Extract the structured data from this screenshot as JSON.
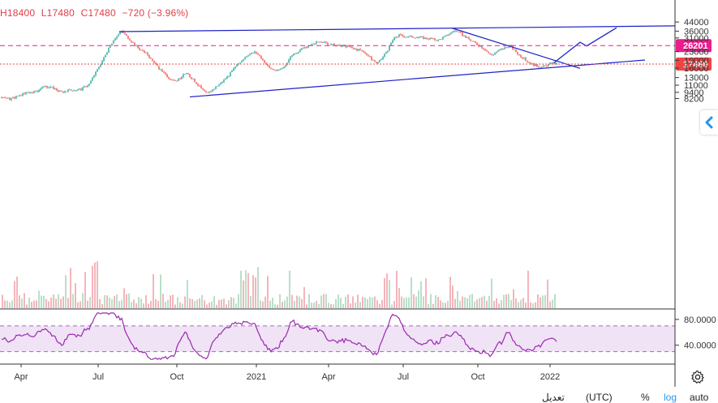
{
  "header": {
    "high": "H18400",
    "low": "L17480",
    "close": "C17480",
    "change": "−720 (−3.96%)"
  },
  "chart_data": {
    "type": "candlestick",
    "price_axis": {
      "scale": "log",
      "ticks": [
        44000,
        36000,
        31000,
        23000,
        19000,
        16000,
        13000,
        11000,
        9400,
        8200
      ]
    },
    "price_ticks_text": [
      "44000",
      "36000",
      "31000",
      "23000",
      "19000",
      "16000",
      "13000",
      "11000",
      "9400",
      "8200"
    ],
    "price_labels": [
      {
        "value": 26201,
        "text": "26201",
        "color": "#e91e8c"
      },
      {
        "value": 17480,
        "text": "17480",
        "color": "#ef4444"
      }
    ],
    "time_labels": [
      "Apr",
      "Jul",
      "Oct",
      "2021",
      "Apr",
      "Jul",
      "Oct",
      "2022"
    ],
    "rsi": {
      "ticks": [
        "80.0000",
        "40.0000"
      ],
      "upper_band": 70,
      "lower_band": 30,
      "color": "#9c27b0"
    },
    "price_path": [
      [
        0,
        8500
      ],
      [
        12,
        8050
      ],
      [
        25,
        8900
      ],
      [
        35,
        9300
      ],
      [
        45,
        9600
      ],
      [
        55,
        10600
      ],
      [
        65,
        10400
      ],
      [
        75,
        9400
      ],
      [
        85,
        9800
      ],
      [
        100,
        10100
      ],
      [
        110,
        11300
      ],
      [
        120,
        15500
      ],
      [
        128,
        20000
      ],
      [
        140,
        30000
      ],
      [
        150,
        36000
      ],
      [
        158,
        31000
      ],
      [
        170,
        25000
      ],
      [
        180,
        22000
      ],
      [
        195,
        16000
      ],
      [
        205,
        13500
      ],
      [
        215,
        11800
      ],
      [
        222,
        12800
      ],
      [
        230,
        14500
      ],
      [
        240,
        12000
      ],
      [
        250,
        9800
      ],
      [
        255,
        9100
      ],
      [
        262,
        10000
      ],
      [
        272,
        11500
      ],
      [
        283,
        14000
      ],
      [
        295,
        18000
      ],
      [
        305,
        21500
      ],
      [
        315,
        22800
      ],
      [
        322,
        20000
      ],
      [
        332,
        16000
      ],
      [
        342,
        15000
      ],
      [
        350,
        16500
      ],
      [
        360,
        21500
      ],
      [
        375,
        25000
      ],
      [
        385,
        27000
      ],
      [
        395,
        28800
      ],
      [
        405,
        27000
      ],
      [
        415,
        26200
      ],
      [
        430,
        25800
      ],
      [
        440,
        24000
      ],
      [
        450,
        22500
      ],
      [
        458,
        19500
      ],
      [
        465,
        17600
      ],
      [
        470,
        19500
      ],
      [
        478,
        24000
      ],
      [
        485,
        30500
      ],
      [
        492,
        33000
      ],
      [
        500,
        32000
      ],
      [
        510,
        31800
      ],
      [
        520,
        31200
      ],
      [
        530,
        30500
      ],
      [
        540,
        29500
      ],
      [
        550,
        32500
      ],
      [
        560,
        36500
      ],
      [
        568,
        34000
      ],
      [
        578,
        30000
      ],
      [
        588,
        27000
      ],
      [
        598,
        24000
      ],
      [
        605,
        21000
      ],
      [
        612,
        23000
      ],
      [
        620,
        24500
      ],
      [
        628,
        26300
      ],
      [
        638,
        22000
      ],
      [
        648,
        19000
      ],
      [
        655,
        17500
      ],
      [
        662,
        16800
      ],
      [
        668,
        16400
      ],
      [
        673,
        16800
      ],
      [
        680,
        17900
      ],
      [
        686,
        17480
      ]
    ],
    "drawings": [
      {
        "from": [
          "Jul-2020",
          35600
        ],
        "to": [
          "Mar-2022",
          40400
        ]
      },
      {
        "from": [
          "Oct-2020",
          8500
        ],
        "to": [
          "Mar-2022",
          19100
        ]
      },
      {
        "from": [
          "Aug-2021",
          38500
        ],
        "to": [
          "Jan-2022",
          15900
        ]
      },
      {
        "path": [
          [
            "Dec-2021",
            18000
          ],
          [
            "Jan-2022",
            28200
          ],
          [
            "Feb-2022",
            26000
          ],
          [
            "Mar-2022",
            38800
          ]
        ]
      }
    ]
  },
  "toolbar": {
    "timezone": "(UTC)",
    "timezone_prefix": "تعديل",
    "percent": "%",
    "log": "log",
    "auto": "auto"
  }
}
